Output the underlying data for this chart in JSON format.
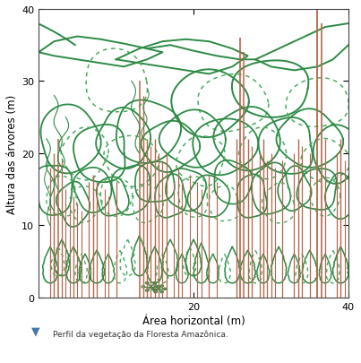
{
  "xlabel": "Área horizontal (m)",
  "ylabel": "Altura das árvores (m)",
  "xlim": [
    0,
    40
  ],
  "ylim": [
    0,
    40
  ],
  "xticks": [
    20,
    40
  ],
  "yticks": [
    0,
    10,
    20,
    30,
    40
  ],
  "caption": "Perfil da vegetação da Floresta Amazônica.",
  "gs": "#2d8a45",
  "gd": "#4aaa60",
  "br": "#b5664a",
  "bg": "#ffffff",
  "arrow_color": "#4477aa",
  "figsize": [
    4.03,
    4.06
  ],
  "dpi": 100
}
